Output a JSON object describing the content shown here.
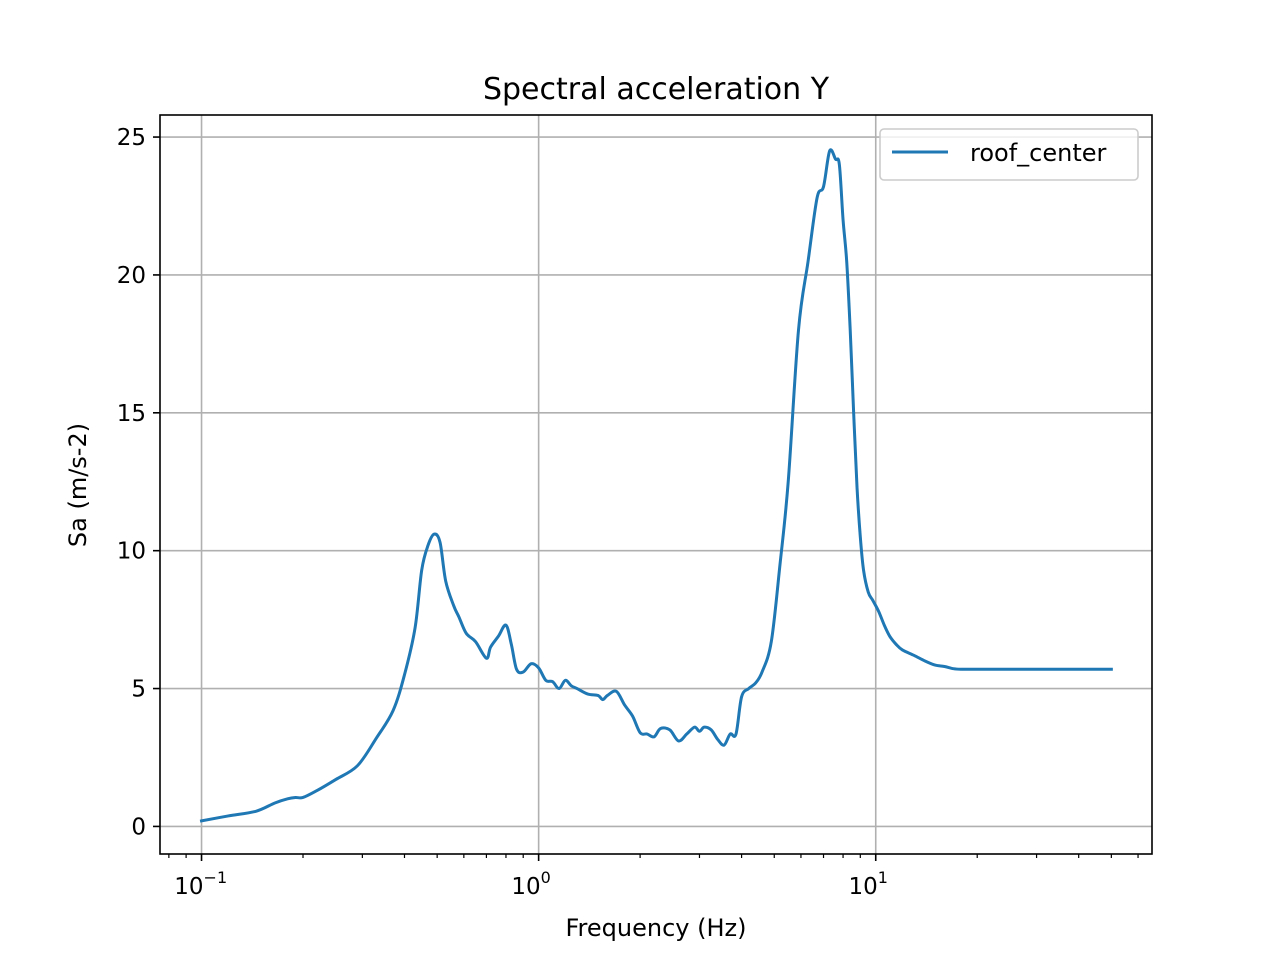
{
  "chart_data": {
    "type": "line",
    "title": "Spectral acceleration Y",
    "xlabel": "Frequency (Hz)",
    "ylabel": "Sa (m/s-2)",
    "xscale": "log",
    "xlim": [
      0.0753,
      66
    ],
    "ylim": [
      -1.0,
      25.8
    ],
    "x_ticks": [
      {
        "base": "10",
        "exp": "−1",
        "value": 0.1
      },
      {
        "base": "10",
        "exp": "0",
        "value": 1
      },
      {
        "base": "10",
        "exp": "1",
        "value": 10
      }
    ],
    "y_ticks": [
      "0",
      "5",
      "10",
      "15",
      "20",
      "25"
    ],
    "grid": true,
    "legend_position": "top-right",
    "colors": {
      "series": "#1f77b4",
      "grid": "#b0b0b0"
    },
    "series": [
      {
        "name": "roof_center",
        "x": [
          0.1,
          0.12,
          0.145,
          0.165,
          0.18,
          0.19,
          0.2,
          0.22,
          0.25,
          0.29,
          0.33,
          0.37,
          0.4,
          0.43,
          0.45,
          0.47,
          0.49,
          0.51,
          0.53,
          0.56,
          0.58,
          0.61,
          0.65,
          0.7,
          0.72,
          0.76,
          0.8,
          0.83,
          0.86,
          0.9,
          0.95,
          1.0,
          1.05,
          1.1,
          1.15,
          1.2,
          1.25,
          1.3,
          1.4,
          1.5,
          1.55,
          1.6,
          1.7,
          1.8,
          1.9,
          2.0,
          2.1,
          2.2,
          2.3,
          2.45,
          2.6,
          2.75,
          2.9,
          3.0,
          3.1,
          3.25,
          3.4,
          3.55,
          3.7,
          3.85,
          4.0,
          4.2,
          4.4,
          4.6,
          4.9,
          5.2,
          5.5,
          5.9,
          6.3,
          6.7,
          7.0,
          7.3,
          7.6,
          7.8,
          8.0,
          8.2,
          8.4,
          8.6,
          8.8,
          9.0,
          9.2,
          9.5,
          9.8,
          10.2,
          10.6,
          11.0,
          11.5,
          12.0,
          13.0,
          14.0,
          15.0,
          16.0,
          17.0,
          18.0,
          20.0,
          22.0,
          25.0,
          28.0,
          32.0,
          38.0,
          45.0,
          50.0
        ],
        "y": [
          0.2,
          0.38,
          0.55,
          0.85,
          1.0,
          1.05,
          1.05,
          1.3,
          1.7,
          2.2,
          3.2,
          4.2,
          5.5,
          7.2,
          9.3,
          10.2,
          10.6,
          10.3,
          8.9,
          8.0,
          7.6,
          7.0,
          6.7,
          6.1,
          6.5,
          6.9,
          7.3,
          6.6,
          5.7,
          5.6,
          5.9,
          5.75,
          5.3,
          5.25,
          5.0,
          5.3,
          5.1,
          5.0,
          4.8,
          4.75,
          4.6,
          4.75,
          4.9,
          4.4,
          4.0,
          3.4,
          3.35,
          3.25,
          3.55,
          3.5,
          3.1,
          3.35,
          3.6,
          3.45,
          3.6,
          3.5,
          3.15,
          2.95,
          3.35,
          3.35,
          4.7,
          5.0,
          5.2,
          5.6,
          6.7,
          9.5,
          12.5,
          18.0,
          20.5,
          22.8,
          23.2,
          24.5,
          24.2,
          24.0,
          22.0,
          20.5,
          18.0,
          15.0,
          12.3,
          10.5,
          9.3,
          8.5,
          8.2,
          7.8,
          7.3,
          6.9,
          6.6,
          6.4,
          6.2,
          6.0,
          5.85,
          5.8,
          5.72,
          5.7,
          5.7,
          5.7,
          5.7,
          5.7,
          5.7,
          5.7,
          5.7,
          5.7
        ],
        "_ignored": null
      }
    ]
  }
}
